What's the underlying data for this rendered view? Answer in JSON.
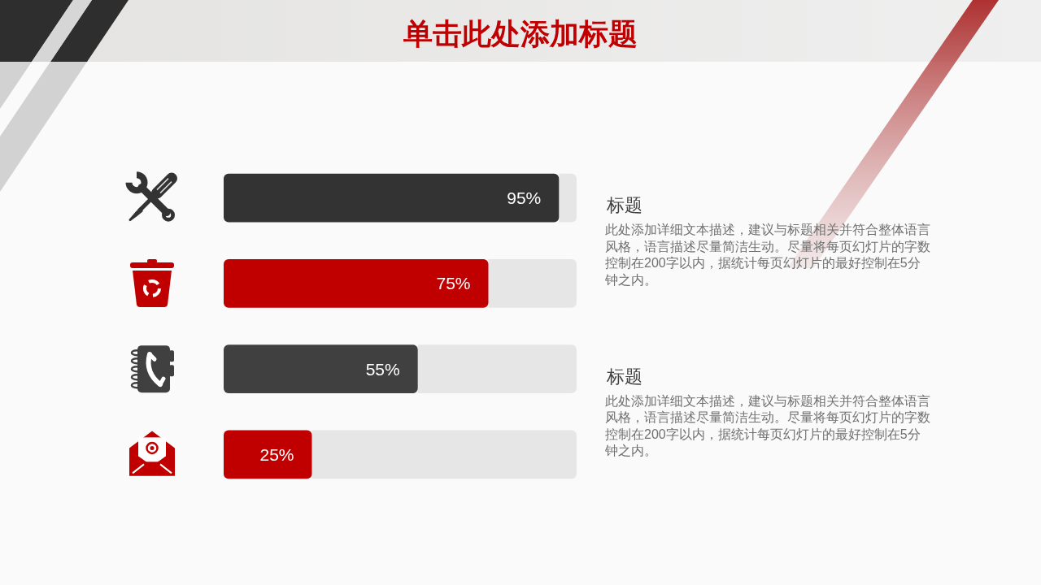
{
  "chart_data": {
    "type": "bar",
    "title": "单击此处添加标题",
    "orientation": "horizontal",
    "categories": [
      null,
      null,
      null,
      null
    ],
    "values": [
      95,
      75,
      55,
      25
    ],
    "colors": [
      "#333333",
      "#c00000",
      "#404040",
      "#c00000"
    ],
    "xlim": [
      0,
      100
    ],
    "value_labels": [
      "95%",
      "75%",
      "55%",
      "25%"
    ],
    "tick_labels": false,
    "annotations": [
      "标题",
      "此处添加详细文本描述，建议与标题相关并符合整体语言风格，语言描述尽量简洁生动。尽量将每页幻灯片的字数控制在200字以内，据统计每页幻灯片的最好控制在5分钟之内。",
      "标题",
      "此处添加详细文本描述，建议与标题相关并符合整体语言风格，语言描述尽量简洁生动。尽量将每页幻灯片的字数控制在200字以内，据统计每页幻灯片的最好控制在5分钟之内。"
    ]
  }
}
